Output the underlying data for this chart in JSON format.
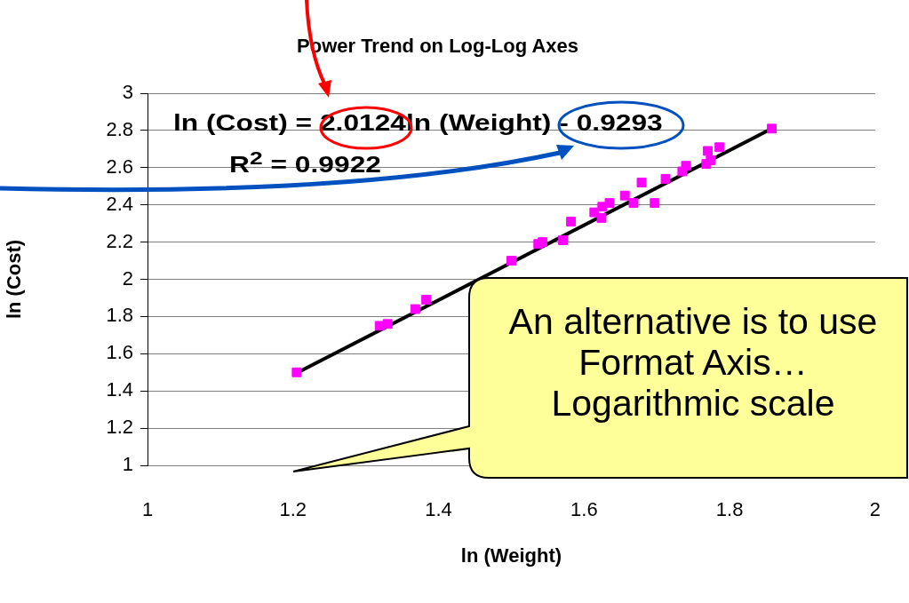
{
  "chart_data": {
    "type": "scatter",
    "title": "Power Trend on Log-Log Axes",
    "xlabel": "ln (Weight)",
    "ylabel": "ln (Cost)",
    "annotations": [
      "ln (Cost) = 2.0124ln (Weight) - 0.9293",
      "R$^{2}$ = 0.9922",
      "An alternative is to use Format Axis… Logarithmic scale"
    ],
    "series": [
      {
        "color": "#ff00ff",
        "marker": "square",
        "x": [
          1.205,
          1.319,
          1.33,
          1.368,
          1.383,
          1.5,
          1.537,
          1.543,
          1.571,
          1.582,
          1.614,
          1.624,
          1.625,
          1.635,
          1.656,
          1.668,
          1.679,
          1.697,
          1.712,
          1.735,
          1.74,
          1.768,
          1.77,
          1.774,
          1.786,
          1.858
        ],
        "values": [
          1.5,
          1.75,
          1.76,
          1.84,
          1.89,
          2.1,
          2.19,
          2.2,
          2.21,
          2.31,
          2.36,
          2.33,
          2.39,
          2.41,
          2.45,
          2.41,
          2.52,
          2.41,
          2.54,
          2.58,
          2.61,
          2.62,
          2.69,
          2.64,
          2.71,
          2.81
        ]
      },
      {
        "type": "line",
        "color": "#000000",
        "marker": "none",
        "x": [
          1.205,
          1.858
        ],
        "values": [
          1.496,
          2.81
        ]
      }
    ],
    "xlim": [
      1,
      2
    ],
    "xticks": [
      1,
      1.2,
      1.4,
      1.6,
      1.8,
      2
    ],
    "ylim": [
      1,
      3
    ],
    "yticks": [
      1,
      1.2,
      1.4,
      1.6,
      1.8,
      2,
      2.2,
      2.4,
      2.6,
      2.8,
      3
    ],
    "grid": "y",
    "legend": false
  }
}
